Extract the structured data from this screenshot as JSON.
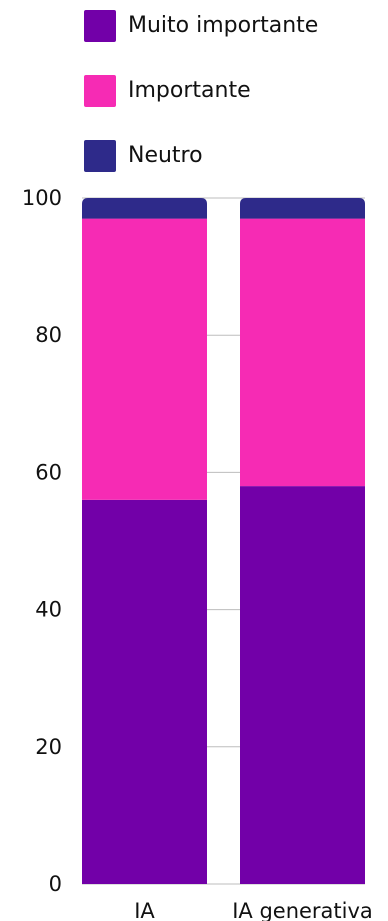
{
  "chart_data": {
    "type": "bar",
    "stacked": true,
    "categories": [
      "IA",
      "IA generativa"
    ],
    "series": [
      {
        "name": "Muito importante",
        "color": "#7200a8",
        "values": [
          56,
          58
        ]
      },
      {
        "name": "Importante",
        "color": "#f62bb4",
        "values": [
          41,
          39
        ]
      },
      {
        "name": "Neutro",
        "color": "#2e2a8a",
        "values": [
          3,
          3
        ]
      }
    ],
    "ylim": [
      0,
      100
    ],
    "yticks": [
      0,
      20,
      40,
      60,
      80,
      100
    ],
    "legend_position": "top",
    "grid": true
  }
}
